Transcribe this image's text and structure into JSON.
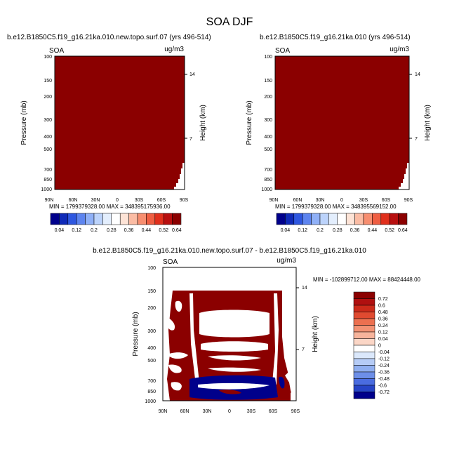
{
  "title": "SOA DJF",
  "colors": {
    "bg": "#ffffff",
    "high": "#8b0000",
    "low": "#00008b"
  },
  "chart_data": [
    {
      "type": "heatmap",
      "title": "b.e12.B1850C5.f19_g16.21ka.010.new.topo.surf.07 (yrs 496-514)",
      "left_label": "SOA",
      "units": "ug/m3",
      "ylabel": "Pressure (mb)",
      "ylabel_right": "Height (km)",
      "x_ticks": [
        "90N",
        "60N",
        "30N",
        "0",
        "30S",
        "60S",
        "90S"
      ],
      "y_ticks": [
        "100",
        "150",
        "200",
        "300",
        "400",
        "500",
        "700",
        "850",
        "1000"
      ],
      "y_ticks_right": [
        "14",
        "7"
      ],
      "stats": "MIN = 1799379328.00   MAX = 348395175936.00",
      "colorbar": {
        "labels": [
          "0.04",
          "0.12",
          "0.2",
          "0.28",
          "0.36",
          "0.44",
          "0.52",
          "0.64"
        ],
        "colors": [
          "#00008b",
          "#0f2ab8",
          "#2e57e0",
          "#5d84ef",
          "#8fb0f7",
          "#bcd3fb",
          "#e3eefd",
          "#ffffff",
          "#fde3d6",
          "#fbbca4",
          "#f78e70",
          "#ef5e42",
          "#e02f1c",
          "#b80f0f",
          "#8b0000"
        ]
      }
    },
    {
      "type": "heatmap",
      "title": "b.e12.B1850C5.f19_g16.21ka.010 (yrs 496-514)",
      "left_label": "SOA",
      "units": "ug/m3",
      "ylabel": "Pressure (mb)",
      "ylabel_right": "Height (km)",
      "x_ticks": [
        "90N",
        "60N",
        "30N",
        "0",
        "30S",
        "60S",
        "90S"
      ],
      "y_ticks": [
        "100",
        "150",
        "200",
        "300",
        "400",
        "500",
        "700",
        "850",
        "1000"
      ],
      "y_ticks_right": [
        "14",
        "7"
      ],
      "stats": "MIN = 1799379328.00   MAX = 348395569152.00",
      "colorbar": {
        "labels": [
          "0.04",
          "0.12",
          "0.2",
          "0.28",
          "0.36",
          "0.44",
          "0.52",
          "0.64"
        ],
        "colors": [
          "#00008b",
          "#0f2ab8",
          "#2e57e0",
          "#5d84ef",
          "#8fb0f7",
          "#bcd3fb",
          "#e3eefd",
          "#ffffff",
          "#fde3d6",
          "#fbbca4",
          "#f78e70",
          "#ef5e42",
          "#e02f1c",
          "#b80f0f",
          "#8b0000"
        ]
      }
    },
    {
      "type": "heatmap",
      "title": "b.e12.B1850C5.f19_g16.21ka.010.new.topo.surf.07 - b.e12.B1850C5.f19_g16.21ka.010",
      "left_label": "SOA",
      "units": "ug/m3",
      "ylabel": "Pressure (mb)",
      "ylabel_right": "Height (km)",
      "x_ticks": [
        "90N",
        "60N",
        "30N",
        "0",
        "30S",
        "60S",
        "90S"
      ],
      "y_ticks": [
        "100",
        "150",
        "200",
        "300",
        "400",
        "500",
        "700",
        "850",
        "1000"
      ],
      "y_ticks_right": [
        "14",
        "7"
      ],
      "stats": "MIN = -102899712.00  MAX = 88424448.00",
      "colorbar": {
        "labels": [
          "0.72",
          "0.6",
          "0.48",
          "0.36",
          "0.24",
          "0.12",
          "0.04",
          "0",
          "-0.04",
          "-0.12",
          "-0.24",
          "-0.36",
          "-0.48",
          "-0.6",
          "-0.72"
        ],
        "colors": [
          "#8b0000",
          "#b01010",
          "#cc2a1a",
          "#e04a30",
          "#ec7050",
          "#f39274",
          "#f7b49c",
          "#fbd6c6",
          "#ffffff",
          "#dbe8fb",
          "#b6ccf6",
          "#90aff0",
          "#6d8fe8",
          "#4a6ce0",
          "#2644c6",
          "#00008b"
        ]
      }
    }
  ]
}
